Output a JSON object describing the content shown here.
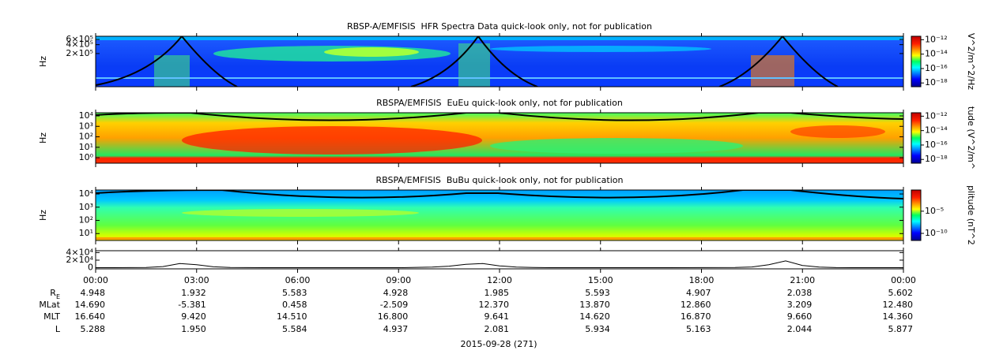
{
  "chart_data": [
    {
      "type": "spectrogram",
      "title": "RBSP-A/EMFISIS  HFR Spectra Data quick-look only, not for publication",
      "y_label": "Hz",
      "log_y": true,
      "ylim": [
        15000,
        770000
      ],
      "yticks": [
        {
          "value": 200000,
          "label": "2×10⁵"
        },
        {
          "value": 400000,
          "label": "4×10⁵"
        },
        {
          "value": 600000,
          "label": "6×10⁵"
        }
      ],
      "colorbar": {
        "label": "V^2/m^2/Hz",
        "log": true,
        "lim": [
          3e-19,
          3e-12
        ],
        "ticks": [
          {
            "value": 1e-12,
            "label": "10⁻¹²"
          },
          {
            "value": 1e-14,
            "label": "10⁻¹⁴"
          },
          {
            "value": 1e-16,
            "label": "10⁻¹⁶"
          },
          {
            "value": 1e-18,
            "label": "10⁻¹⁸"
          }
        ]
      }
    },
    {
      "type": "spectrogram",
      "title": "RBSPA/EMFISIS  EuEu quick-look only, not for publication",
      "y_label": "Hz",
      "log_y": true,
      "ylim": [
        0.3,
        20000
      ],
      "yticks": [
        {
          "value": 1,
          "label": "10⁰"
        },
        {
          "value": 10,
          "label": "10¹"
        },
        {
          "value": 100,
          "label": "10²"
        },
        {
          "value": 1000,
          "label": "10³"
        },
        {
          "value": 10000,
          "label": "10⁴"
        }
      ],
      "colorbar": {
        "label": "tude (V^2/m^",
        "log": true,
        "lim": [
          3e-19,
          3e-12
        ],
        "ticks": [
          {
            "value": 1e-12,
            "label": "10⁻¹²"
          },
          {
            "value": 1e-14,
            "label": "10⁻¹⁴"
          },
          {
            "value": 1e-16,
            "label": "10⁻¹⁶"
          },
          {
            "value": 1e-18,
            "label": "10⁻¹⁸"
          }
        ]
      }
    },
    {
      "type": "spectrogram",
      "title": "RBSPA/EMFISIS  BuBu quick-look only, not for publication",
      "y_label": "Hz",
      "log_y": true,
      "ylim": [
        3,
        20000
      ],
      "yticks": [
        {
          "value": 10,
          "label": "10¹"
        },
        {
          "value": 100,
          "label": "10²"
        },
        {
          "value": 1000,
          "label": "10³"
        },
        {
          "value": 10000,
          "label": "10⁴"
        }
      ],
      "colorbar": {
        "label": "plitude (nT^2",
        "log": true,
        "lim": [
          2.5e-12,
          0.6
        ],
        "ticks": [
          {
            "value": 1e-05,
            "label": "10⁻⁵"
          },
          {
            "value": 1e-10,
            "label": "10⁻¹⁰"
          }
        ]
      }
    },
    {
      "type": "line",
      "color": "#000000",
      "ylim": [
        -3000,
        45000
      ],
      "yticks": [
        {
          "value": 0,
          "label": "0"
        },
        {
          "value": 20000,
          "label": "2×10⁴"
        },
        {
          "value": 40000,
          "label": "4×10⁴"
        }
      ],
      "xlim": [
        0,
        24
      ],
      "xticks": [
        {
          "value": 0,
          "label": "00:00"
        },
        {
          "value": 3,
          "label": "03:00"
        },
        {
          "value": 6,
          "label": "06:00"
        },
        {
          "value": 9,
          "label": "09:00"
        },
        {
          "value": 12,
          "label": "12:00"
        },
        {
          "value": 15,
          "label": "15:00"
        },
        {
          "value": 18,
          "label": "18:00"
        },
        {
          "value": 21,
          "label": "21:00"
        },
        {
          "value": 24,
          "label": "00:00"
        }
      ],
      "x": [
        0,
        0.5,
        1,
        1.5,
        2,
        2.5,
        3,
        3.5,
        4,
        4.5,
        5,
        6,
        7,
        8,
        9,
        10,
        10.5,
        11,
        11.5,
        12,
        12.5,
        13,
        13.5,
        15,
        17,
        19,
        19.5,
        20,
        20.5,
        21,
        21.5,
        22,
        22.5,
        23,
        24
      ],
      "values": [
        200,
        200,
        300,
        800,
        3000,
        11000,
        8000,
        2500,
        800,
        300,
        200,
        100,
        100,
        100,
        200,
        1500,
        4000,
        9000,
        11000,
        5000,
        1500,
        500,
        200,
        100,
        100,
        600,
        2000,
        8000,
        18000,
        6000,
        1500,
        400,
        200,
        100,
        100
      ]
    }
  ],
  "ephemeris": {
    "rows": [
      {
        "label": "R",
        "subscript": "E",
        "values": [
          "4.948",
          "1.932",
          "5.583",
          "4.928",
          "1.985",
          "5.593",
          "4.907",
          "2.038",
          "5.602"
        ]
      },
      {
        "label": "MLat",
        "values": [
          "14.690",
          "-5.381",
          "0.458",
          "-2.509",
          "12.370",
          "13.870",
          "12.860",
          "3.209",
          "12.480"
        ]
      },
      {
        "label": "MLT",
        "values": [
          "16.640",
          "9.420",
          "14.510",
          "16.800",
          "9.641",
          "14.620",
          "16.870",
          "9.660",
          "14.360"
        ]
      },
      {
        "label": "L",
        "values": [
          "5.288",
          "1.950",
          "5.584",
          "4.937",
          "2.081",
          "5.934",
          "5.163",
          "2.044",
          "5.877"
        ]
      }
    ],
    "date": "2015-09-28 (271)"
  }
}
